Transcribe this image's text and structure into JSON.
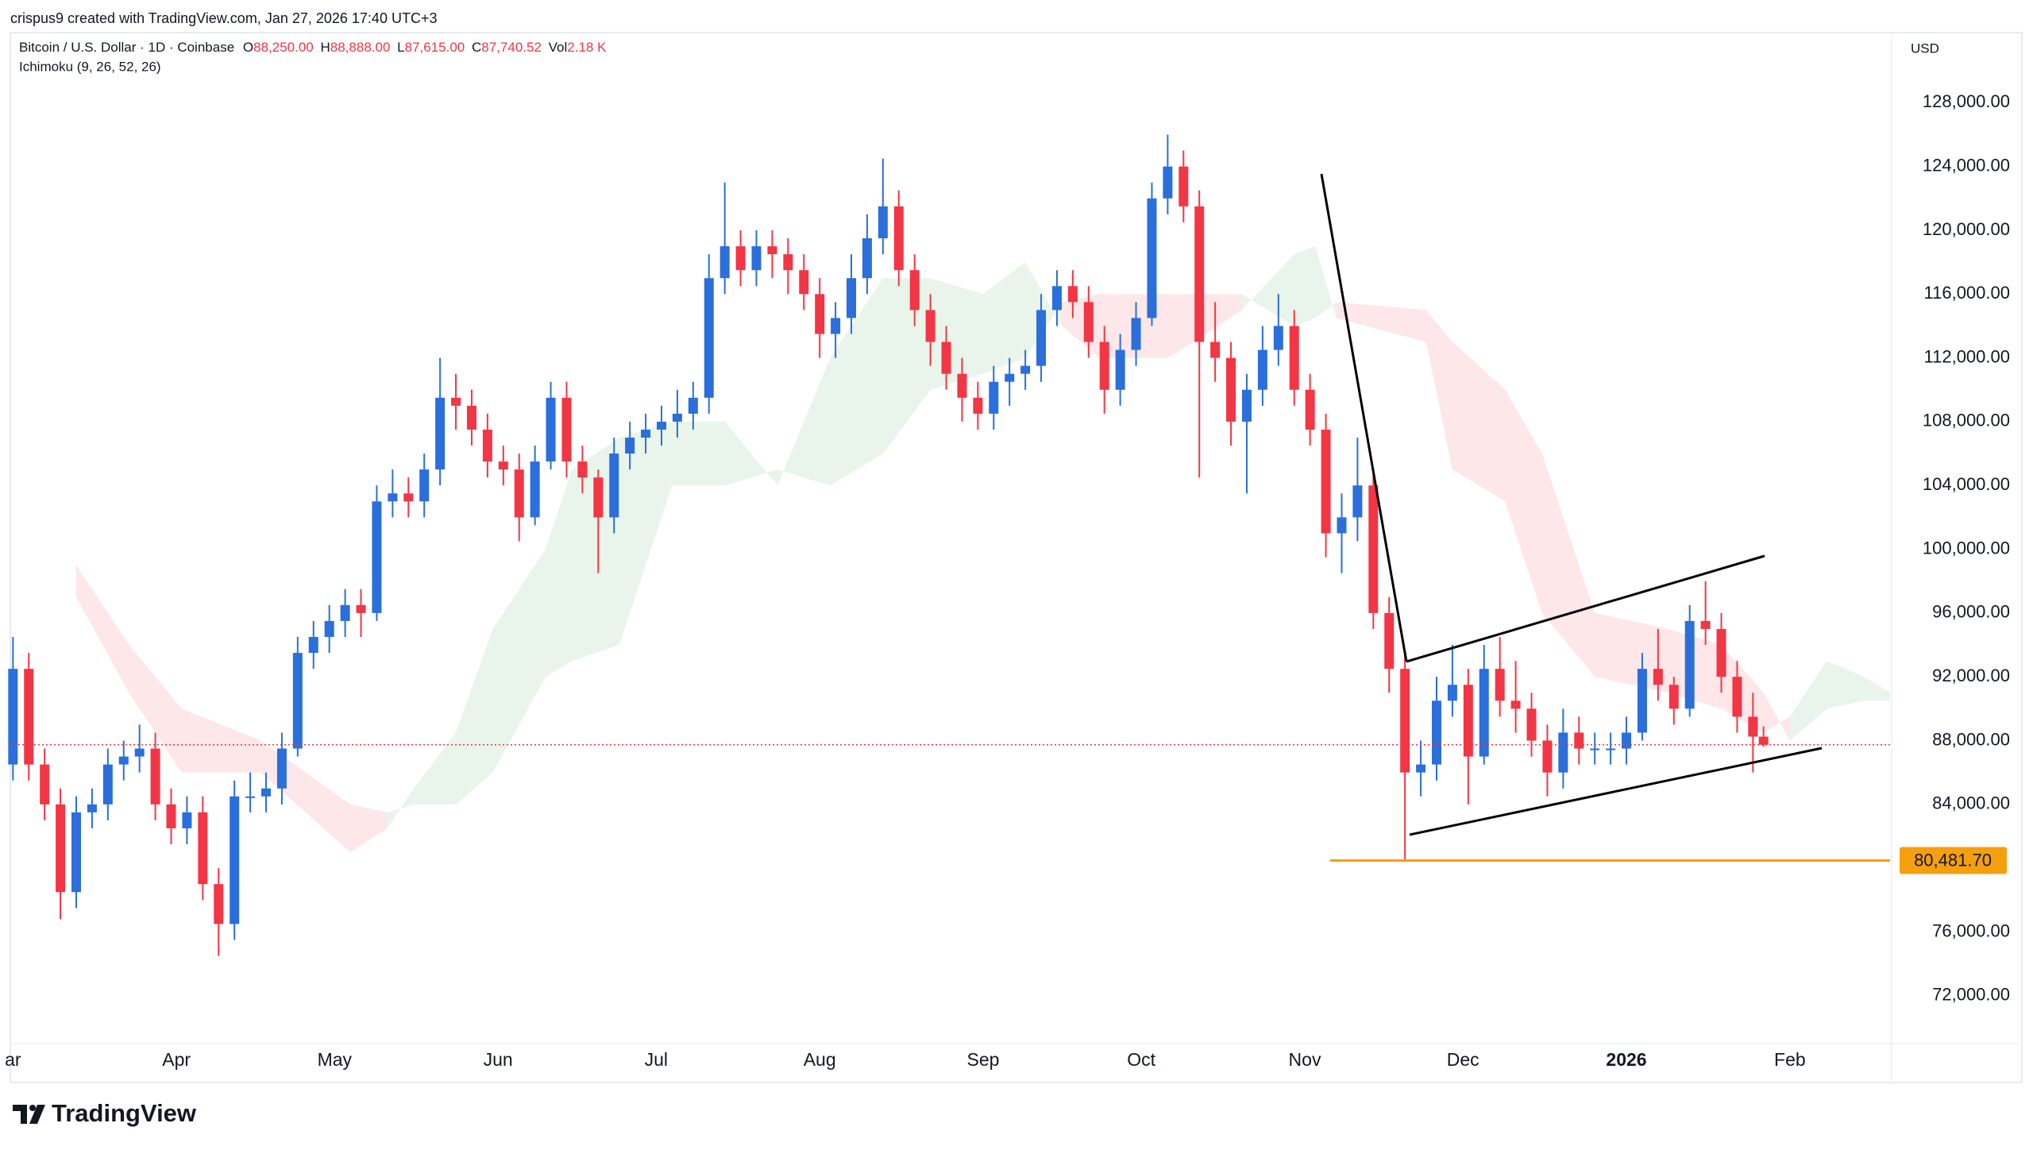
{
  "header": {
    "credit": "crispus9 created with TradingView.com, Jan 27, 2026 17:40 UTC+3",
    "symbol": "Bitcoin / U.S. Dollar · 1D · Coinbase",
    "ohlc": [
      {
        "key": "O",
        "value": "88,250.00"
      },
      {
        "key": "H",
        "value": "88,888.00"
      },
      {
        "key": "L",
        "value": "87,615.00"
      },
      {
        "key": "C",
        "value": "87,740.52"
      },
      {
        "key": "Vol",
        "value": "2.18 K"
      }
    ],
    "indicator": "Ichimoku (9, 26, 52, 26)",
    "currency": "USD"
  },
  "footer": {
    "brand": "TradingView"
  },
  "chart_data": {
    "type": "candlestick",
    "up_color": "#2a6fdb",
    "down_color": "#f23645",
    "x": [
      0,
      3,
      6,
      9,
      12,
      15,
      18,
      21,
      24,
      27,
      30,
      33,
      36,
      39,
      42,
      45,
      48,
      51,
      54,
      57,
      60,
      63,
      66,
      69,
      72,
      75,
      78,
      81,
      84,
      87,
      90,
      93,
      96,
      99,
      102,
      105,
      108,
      111,
      114,
      117,
      120,
      123,
      126,
      129,
      132,
      135,
      138,
      141,
      144,
      147,
      150,
      153,
      156,
      159,
      162,
      165,
      168,
      171,
      174,
      177,
      180,
      183,
      186,
      189,
      192,
      195,
      198,
      201,
      204,
      207,
      210,
      213,
      216,
      219,
      222,
      225,
      228,
      231,
      234,
      237,
      240,
      243,
      246,
      249,
      252,
      255,
      258,
      261,
      264,
      267,
      270,
      273,
      276,
      279,
      282,
      285,
      288,
      291,
      294,
      297,
      300,
      303,
      306,
      309,
      312,
      315,
      318,
      321,
      324,
      327,
      330,
      332
    ],
    "open": [
      86500,
      92500,
      86500,
      84000,
      78500,
      83500,
      84000,
      86500,
      87000,
      87500,
      84000,
      82500,
      83500,
      79000,
      76500,
      84500,
      84500,
      85000,
      87500,
      93500,
      94500,
      95500,
      96500,
      96000,
      103000,
      103500,
      103000,
      105000,
      109500,
      109000,
      107500,
      105500,
      105000,
      102000,
      105500,
      109500,
      105500,
      104500,
      102000,
      106000,
      107000,
      107500,
      108000,
      108500,
      109500,
      117000,
      119000,
      117500,
      119000,
      118500,
      117500,
      116000,
      113500,
      114500,
      117000,
      119500,
      121500,
      117500,
      115000,
      113000,
      111000,
      109500,
      108500,
      110500,
      111000,
      111500,
      115000,
      116500,
      115500,
      113000,
      110000,
      112500,
      114500,
      122000,
      124000,
      121500,
      113000,
      112000,
      108000,
      110000,
      112500,
      114000,
      110000,
      107500,
      101000,
      102000,
      104000,
      96000,
      92500,
      86000,
      86500,
      90500,
      91500,
      87000,
      92500,
      90500,
      90000,
      88000,
      86000,
      88500,
      87500,
      87500,
      87500,
      88500,
      92500,
      91500,
      90000,
      95500,
      95000,
      92000,
      89500,
      88250
    ],
    "high": [
      94500,
      93500,
      87500,
      85000,
      84500,
      85000,
      87500,
      88000,
      89000,
      88500,
      85000,
      84500,
      84500,
      80000,
      85500,
      86000,
      86000,
      88500,
      94500,
      95500,
      96500,
      97500,
      97500,
      104000,
      105000,
      104500,
      106000,
      112000,
      111000,
      110000,
      108500,
      106500,
      106000,
      106500,
      110500,
      110500,
      106500,
      105000,
      107000,
      108000,
      108500,
      109000,
      110000,
      110500,
      118500,
      123000,
      120000,
      120000,
      120000,
      119500,
      118500,
      117000,
      115500,
      118500,
      121000,
      124500,
      122500,
      118500,
      116000,
      114000,
      112000,
      110500,
      111500,
      112000,
      112500,
      116000,
      117500,
      117500,
      116500,
      114000,
      113500,
      115500,
      123000,
      126000,
      125000,
      122500,
      115500,
      113000,
      111000,
      114000,
      116000,
      115000,
      111000,
      108500,
      103500,
      107000,
      105000,
      97000,
      93500,
      88000,
      92000,
      94000,
      92500,
      94000,
      94500,
      93000,
      91000,
      89000,
      90000,
      89500,
      88500,
      88500,
      89500,
      93500,
      95000,
      92000,
      96500,
      98000,
      96000,
      93000,
      91000,
      88888
    ],
    "low": [
      85500,
      85500,
      83000,
      76800,
      77500,
      82500,
      83000,
      85500,
      86000,
      83000,
      81500,
      81500,
      78000,
      74500,
      75500,
      83500,
      83500,
      84000,
      87000,
      92500,
      93500,
      94500,
      94500,
      95500,
      102000,
      102000,
      102000,
      104000,
      107500,
      106500,
      104500,
      104000,
      100500,
      101500,
      105000,
      104500,
      103500,
      98500,
      101000,
      105000,
      106000,
      106500,
      107000,
      107500,
      108500,
      116000,
      116500,
      116500,
      117000,
      116000,
      115000,
      112000,
      112000,
      113500,
      116000,
      118500,
      116500,
      114000,
      111500,
      110000,
      108000,
      107500,
      107500,
      109000,
      110000,
      110500,
      114000,
      114500,
      112000,
      108500,
      109000,
      111500,
      114000,
      121000,
      120500,
      104500,
      110500,
      106500,
      103500,
      109000,
      111500,
      109000,
      106500,
      99500,
      98500,
      100500,
      95000,
      91000,
      80500,
      84500,
      85500,
      89500,
      84000,
      86500,
      89500,
      88500,
      87000,
      84500,
      85000,
      86500,
      86500,
      86500,
      86500,
      88000,
      90500,
      89000,
      89500,
      94000,
      91000,
      88500,
      86000,
      87615
    ],
    "close": [
      92500,
      86500,
      84000,
      78500,
      83500,
      84000,
      86500,
      87000,
      87500,
      84000,
      82500,
      83500,
      79000,
      76500,
      84500,
      84500,
      85000,
      87500,
      93500,
      94500,
      95500,
      96500,
      96000,
      103000,
      103500,
      103000,
      105000,
      109500,
      109000,
      107500,
      105500,
      105000,
      102000,
      105500,
      109500,
      105500,
      104500,
      102000,
      106000,
      107000,
      107500,
      108000,
      108500,
      109500,
      117000,
      119000,
      117500,
      119000,
      118500,
      117500,
      116000,
      113500,
      114500,
      117000,
      119500,
      121500,
      117500,
      115000,
      113000,
      111000,
      109500,
      108500,
      110500,
      111000,
      111500,
      115000,
      116500,
      115500,
      113000,
      110000,
      112500,
      114500,
      122000,
      124000,
      121500,
      113000,
      112000,
      108000,
      110000,
      112500,
      114000,
      110000,
      107500,
      101000,
      102000,
      104000,
      96000,
      92500,
      86000,
      86500,
      90500,
      91500,
      87000,
      92500,
      90500,
      90000,
      88000,
      86000,
      88500,
      87500,
      87500,
      87500,
      88500,
      92500,
      91500,
      90000,
      95500,
      95000,
      92000,
      89500,
      88250,
      87740.52
    ],
    "cloud": {
      "up_color": "rgba(76,175,80,0.12)",
      "down_color": "rgba(242,54,69,0.12)",
      "x": [
        12,
        22,
        32,
        47,
        64,
        71,
        76,
        84,
        91,
        101,
        106,
        115,
        125,
        135,
        145,
        155,
        165,
        174,
        184,
        192,
        199,
        206,
        219,
        224,
        233,
        243,
        247,
        251,
        268,
        273,
        283,
        290,
        300,
        314,
        324,
        332,
        337,
        344,
        351,
        356
      ],
      "span_a": [
        97000,
        91000,
        86000,
        86000,
        81000,
        82500,
        85000,
        88500,
        95000,
        100000,
        105000,
        107000,
        108000,
        108000,
        104000,
        112000,
        117000,
        117000,
        116000,
        118000,
        114000,
        112000,
        112000,
        113000,
        115000,
        118500,
        119000,
        114500,
        113000,
        105000,
        103000,
        96000,
        92000,
        91000,
        90000,
        88500,
        89500,
        93000,
        92000,
        91000
      ],
      "span_b": [
        99000,
        94000,
        90000,
        88000,
        84000,
        83500,
        84000,
        84000,
        86000,
        92000,
        93000,
        94000,
        104000,
        104000,
        105000,
        104000,
        106000,
        110000,
        111000,
        112000,
        115500,
        116000,
        116000,
        116000,
        116000,
        114000,
        114500,
        115500,
        115000,
        113000,
        110000,
        106000,
        96000,
        95000,
        94000,
        91000,
        88000,
        90000,
        90500,
        90500
      ]
    },
    "level": {
      "value": 80481.7,
      "label": "80,481.70",
      "color": "#f59f0f"
    },
    "last_price_color": "#f23645",
    "xlim": [
      -0.5,
      356
    ],
    "ylim": [
      69000,
      132400
    ],
    "grid": false,
    "xticks": [
      {
        "value": 0,
        "label": "ar"
      },
      {
        "value": 31,
        "label": "Apr"
      },
      {
        "value": 61,
        "label": "May"
      },
      {
        "value": 92,
        "label": "Jun"
      },
      {
        "value": 122,
        "label": "Jul"
      },
      {
        "value": 153,
        "label": "Aug"
      },
      {
        "value": 184,
        "label": "Sep"
      },
      {
        "value": 214,
        "label": "Oct"
      },
      {
        "value": 245,
        "label": "Nov"
      },
      {
        "value": 275,
        "label": "Dec"
      },
      {
        "value": 306,
        "label": "2026",
        "bold": true
      },
      {
        "value": 337,
        "label": "Feb"
      }
    ],
    "yticks": [
      {
        "value": 72000,
        "label": "72,000.00"
      },
      {
        "value": 76000,
        "label": "76,000.00"
      },
      {
        "value": 84000,
        "label": "84,000.00"
      },
      {
        "value": 88000,
        "label": "88,000.00"
      },
      {
        "value": 92000,
        "label": "92,000.00"
      },
      {
        "value": 96000,
        "label": "96,000.00"
      },
      {
        "value": 100000,
        "label": "100,000.00"
      },
      {
        "value": 104000,
        "label": "104,000.00"
      },
      {
        "value": 108000,
        "label": "108,000.00"
      },
      {
        "value": 112000,
        "label": "112,000.00"
      },
      {
        "value": 116000,
        "label": "116,000.00"
      },
      {
        "value": 120000,
        "label": "120,000.00"
      },
      {
        "value": 124000,
        "label": "124,000.00"
      },
      {
        "value": 128000,
        "label": "128,000.00"
      }
    ]
  }
}
